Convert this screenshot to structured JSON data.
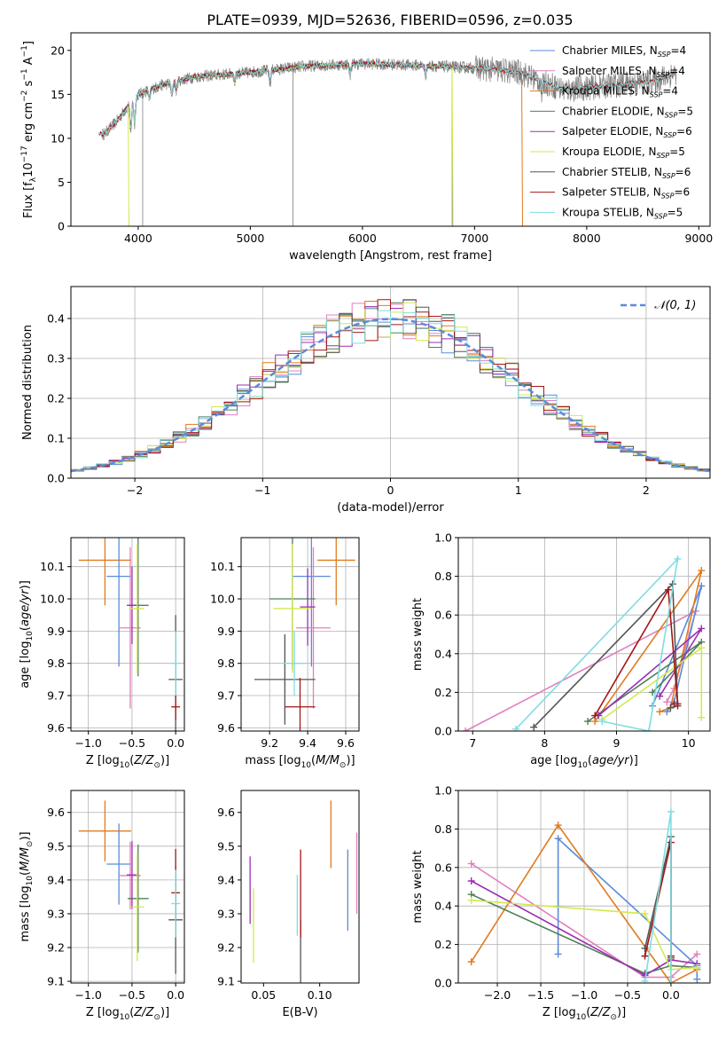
{
  "figure_title": "PLATE=0939, MJD=52636, FIBERID=0596, z=0.035",
  "colors": {
    "Chabrier MILES": "#5b8bd9",
    "Salpeter MILES": "#e07fc0",
    "Kroupa MILES": "#e07b1f",
    "Chabrier ELODIE": "#4f7f5a",
    "Salpeter ELODIE": "#9a2fb3",
    "Kroupa ELODIE": "#d4e84f",
    "Chabrier STELIB": "#555555",
    "Salpeter STELIB": "#a31515",
    "Kroupa STELIB": "#7fdde0"
  },
  "chart_data": [
    {
      "id": "spectrum",
      "type": "line",
      "title": "PLATE=0939, MJD=52636, FIBERID=0596, z=0.035",
      "xlabel": "wavelength [Angstrom, rest frame]",
      "ylabel": "Flux [f_λ 10^-17 erg cm^-2 s^-1 A^-1]",
      "xlim": [
        3400,
        9100
      ],
      "ylim": [
        0,
        22
      ],
      "xticks": [
        4000,
        5000,
        6000,
        7000,
        8000,
        9000
      ],
      "yticks": [
        0,
        5,
        10,
        15,
        20
      ],
      "grid": false,
      "legend_position": "top-right",
      "legend": [
        "Chabrier MILES, N_SSP=4",
        "Salpeter MILES, N_SSP=4",
        "Kroupa MILES, N_SSP=4",
        "Chabrier ELODIE, N_SSP=5",
        "Salpeter ELODIE, N_SSP=6",
        "Kroupa ELODIE, N_SSP=5",
        "Chabrier STELIB, N_SSP=6",
        "Salpeter STELIB, N_SSP=6",
        "Kroupa STELIB, N_SSP=5"
      ],
      "continuum": [
        [
          3700,
          10.5
        ],
        [
          3800,
          11.8
        ],
        [
          3900,
          13.5
        ],
        [
          4000,
          15.0
        ],
        [
          4200,
          16.0
        ],
        [
          4500,
          17.0
        ],
        [
          5000,
          17.5
        ],
        [
          5500,
          18.2
        ],
        [
          6000,
          18.5
        ],
        [
          6500,
          18.3
        ],
        [
          7000,
          18.0
        ],
        [
          7400,
          17.5
        ],
        [
          7800,
          15.5
        ],
        [
          8200,
          16.0
        ],
        [
          8600,
          16.5
        ],
        [
          8800,
          17.5
        ]
      ],
      "model_range": {
        "MILES": [
          3650,
          7400
        ],
        "ELODIE": [
          3900,
          6800
        ],
        "STELIB": [
          3650,
          8800
        ]
      }
    },
    {
      "id": "residuals",
      "type": "bar",
      "xlabel": "(data-model)/error",
      "ylabel": "Normed distribution",
      "xlim": [
        -2.5,
        2.5
      ],
      "ylim": [
        0,
        0.48
      ],
      "xticks": [
        -2,
        -1,
        0,
        1,
        2
      ],
      "xticklabels": [
        "−2",
        "−1",
        "0",
        "1",
        "2"
      ],
      "yticks": [
        0.0,
        0.1,
        0.2,
        0.3,
        0.4
      ],
      "yticklabels": [
        "0.0",
        "0.1",
        "0.2",
        "0.3",
        "0.4"
      ],
      "grid": true,
      "legend_position": "top-right",
      "legend": "𝒩(0, 1)",
      "bin_width": 0.1
    },
    {
      "id": "age-vs-Z",
      "type": "scatter",
      "xlabel": "Z [log10(Z/Z_sun)]",
      "ylabel": "age [log10(age/yr)]",
      "xlim": [
        -1.2,
        0.1
      ],
      "ylim": [
        9.59,
        10.19
      ],
      "xticks": [
        -1.0,
        -0.5,
        0.0
      ],
      "xticklabels": [
        "−1.0",
        "−0.5",
        "0.0"
      ],
      "yticks": [
        9.6,
        9.7,
        9.8,
        9.9,
        10.0,
        10.1
      ],
      "yticklabels": [
        "9.6",
        "9.7",
        "9.8",
        "9.9",
        "10.0",
        "10.1"
      ],
      "grid": true,
      "points": [
        {
          "model": "Kroupa MILES",
          "x": -0.81,
          "xerr": 0.3,
          "y": 10.12,
          "yerr": 0.14
        },
        {
          "model": "Chabrier MILES",
          "x": -0.65,
          "xerr": 0.14,
          "y": 10.07,
          "yerr": 0.28
        },
        {
          "model": "Salpeter MILES",
          "x": -0.52,
          "xerr": 0.12,
          "y": 9.91,
          "yerr": 0.25
        },
        {
          "model": "Chabrier ELODIE",
          "x": -0.43,
          "xerr": 0.12,
          "y": 9.98,
          "yerr": 0.22
        },
        {
          "model": "Salpeter ELODIE",
          "x": -0.5,
          "xerr": 0.06,
          "y": 9.98,
          "yerr": 0.12
        },
        {
          "model": "Kroupa ELODIE",
          "x": -0.44,
          "xerr": 0.08,
          "y": 9.97,
          "yerr": 0.2
        },
        {
          "model": "Chabrier STELIB",
          "x": 0.0,
          "xerr": 0.08,
          "y": 9.75,
          "yerr": 0.2
        },
        {
          "model": "Salpeter STELIB",
          "x": 0.0,
          "xerr": 0.05,
          "y": 9.665,
          "yerr": 0.04
        },
        {
          "model": "Kroupa STELIB",
          "x": 0.0,
          "xerr": 0.05,
          "y": 9.8,
          "yerr": 0.1
        }
      ]
    },
    {
      "id": "age-vs-mass",
      "type": "scatter",
      "xlabel": "mass [log10(M/M_sun)]",
      "ylabel": "",
      "xlim": [
        9.05,
        9.67
      ],
      "ylim": [
        9.59,
        10.19
      ],
      "xticks": [
        9.2,
        9.4,
        9.6
      ],
      "xticklabels": [
        "9.2",
        "9.4",
        "9.6"
      ],
      "yticks": [
        9.6,
        9.7,
        9.8,
        9.9,
        10.0,
        10.1
      ],
      "yticklabels": [
        "9.6",
        "9.7",
        "9.8",
        "9.9",
        "10.0",
        "10.1"
      ],
      "grid": true,
      "points": [
        {
          "model": "Kroupa MILES",
          "x": 9.55,
          "xerr": 0.1,
          "y": 10.12,
          "yerr": 0.14
        },
        {
          "model": "Chabrier MILES",
          "x": 9.42,
          "xerr": 0.1,
          "y": 10.07,
          "yerr": 0.28
        },
        {
          "model": "Salpeter MILES",
          "x": 9.43,
          "xerr": 0.09,
          "y": 9.91,
          "yerr": 0.25
        },
        {
          "model": "Chabrier ELODIE",
          "x": 9.32,
          "xerr": 0.12,
          "y": 10.0,
          "yerr": 0.22
        },
        {
          "model": "Salpeter ELODIE",
          "x": 9.4,
          "xerr": 0.04,
          "y": 9.975,
          "yerr": 0.12
        },
        {
          "model": "Kroupa ELODIE",
          "x": 9.32,
          "xerr": 0.1,
          "y": 9.97,
          "yerr": 0.2
        },
        {
          "model": "Chabrier STELIB",
          "x": 9.28,
          "xerr": 0.16,
          "y": 9.75,
          "yerr": 0.14
        },
        {
          "model": "Salpeter STELIB",
          "x": 9.36,
          "xerr": 0.08,
          "y": 9.665,
          "yerr": 0.09
        },
        {
          "model": "Kroupa STELIB",
          "x": 9.33,
          "xerr": 0.06,
          "y": 9.8,
          "yerr": 0.1
        }
      ]
    },
    {
      "id": "massweight-vs-age",
      "type": "line",
      "xlabel": "age [log10(age/yr)]",
      "ylabel": "mass weight",
      "xlim": [
        6.8,
        10.3
      ],
      "ylim": [
        0,
        1.0
      ],
      "xticks": [
        7,
        8,
        9,
        10
      ],
      "xticklabels": [
        "7",
        "8",
        "9",
        "10"
      ],
      "yticks": [
        0.0,
        0.2,
        0.4,
        0.6,
        0.8,
        1.0
      ],
      "yticklabels": [
        "0.0",
        "0.2",
        "0.4",
        "0.6",
        "0.8",
        "1.0"
      ],
      "grid": true,
      "series": [
        {
          "model": "Salpeter MILES",
          "x": [
            6.9,
            10.1,
            9.8,
            9.7
          ],
          "y": [
            0.0,
            0.62,
            0.22,
            0.15
          ]
        },
        {
          "model": "Chabrier MILES",
          "x": [
            9.5,
            10.18,
            9.8,
            9.7
          ],
          "y": [
            0.13,
            0.75,
            0.15,
            0.1
          ]
        },
        {
          "model": "Kroupa MILES",
          "x": [
            8.7,
            10.18,
            9.75,
            9.6
          ],
          "y": [
            0.05,
            0.83,
            0.12,
            0.1
          ]
        },
        {
          "model": "Chabrier ELODIE",
          "x": [
            8.6,
            10.18,
            9.5
          ],
          "y": [
            0.05,
            0.46,
            0.2
          ]
        },
        {
          "model": "Salpeter ELODIE",
          "x": [
            8.75,
            10.18,
            9.6
          ],
          "y": [
            0.08,
            0.53,
            0.18
          ]
        },
        {
          "model": "Kroupa ELODIE",
          "x": [
            8.8,
            10.18,
            10.18
          ],
          "y": [
            0.06,
            0.43,
            0.07
          ]
        },
        {
          "model": "Chabrier STELIB",
          "x": [
            7.85,
            9.78,
            9.85,
            9.75
          ],
          "y": [
            0.02,
            0.76,
            0.13,
            0.12
          ]
        },
        {
          "model": "Salpeter STELIB",
          "x": [
            8.7,
            9.72,
            9.85,
            9.8
          ],
          "y": [
            0.08,
            0.73,
            0.14,
            0.14
          ]
        },
        {
          "model": "Kroupa STELIB",
          "x": [
            7.6,
            9.85,
            9.45,
            8.8
          ],
          "y": [
            0.01,
            0.89,
            0.0,
            0.05
          ]
        }
      ]
    },
    {
      "id": "mass-vs-Z",
      "type": "scatter",
      "xlabel": "Z [log10(Z/Z_sun)]",
      "ylabel": "mass [log10(M/M_sun)]",
      "xlim": [
        -1.2,
        0.1
      ],
      "ylim": [
        9.095,
        9.665
      ],
      "xticks": [
        -1.0,
        -0.5,
        0.0
      ],
      "xticklabels": [
        "−1.0",
        "−0.5",
        "0.0"
      ],
      "yticks": [
        9.1,
        9.2,
        9.3,
        9.4,
        9.5,
        9.6
      ],
      "yticklabels": [
        "9.1",
        "9.2",
        "9.3",
        "9.4",
        "9.5",
        "9.6"
      ],
      "grid": true,
      "points": [
        {
          "model": "Kroupa MILES",
          "x": -0.81,
          "xerr": 0.3,
          "y": 9.545,
          "yerr": 0.09
        },
        {
          "model": "Chabrier MILES",
          "x": -0.65,
          "xerr": 0.14,
          "y": 9.447,
          "yerr": 0.12
        },
        {
          "model": "Salpeter MILES",
          "x": -0.52,
          "xerr": 0.12,
          "y": 9.413,
          "yerr": 0.1
        },
        {
          "model": "Chabrier ELODIE",
          "x": -0.43,
          "xerr": 0.12,
          "y": 9.345,
          "yerr": 0.16
        },
        {
          "model": "Salpeter ELODIE",
          "x": -0.5,
          "xerr": 0.06,
          "y": 9.415,
          "yerr": 0.1
        },
        {
          "model": "Kroupa ELODIE",
          "x": -0.44,
          "xerr": 0.08,
          "y": 9.32,
          "yerr": 0.16
        },
        {
          "model": "Chabrier STELIB",
          "x": 0.0,
          "xerr": 0.08,
          "y": 9.282,
          "yerr": 0.16
        },
        {
          "model": "Salpeter STELIB",
          "x": 0.0,
          "xerr": 0.05,
          "y": 9.362,
          "yerr": 0.13
        },
        {
          "model": "Kroupa STELIB",
          "x": 0.0,
          "xerr": 0.05,
          "y": 9.33,
          "yerr": 0.1
        }
      ]
    },
    {
      "id": "mass-vs-ebv",
      "type": "scatter",
      "xlabel": "E(B-V)",
      "ylabel": "",
      "xlim": [
        0.03,
        0.135
      ],
      "ylim": [
        9.095,
        9.665
      ],
      "xticks": [
        0.05,
        0.1
      ],
      "xticklabels": [
        "0.05",
        "0.10"
      ],
      "yticks": [
        9.1,
        9.2,
        9.3,
        9.4,
        9.5,
        9.6
      ],
      "yticklabels": [
        "9.1",
        "9.2",
        "9.3",
        "9.4",
        "9.5",
        "9.6"
      ],
      "grid": false,
      "points": [
        {
          "model": "Salpeter ELODIE",
          "x": 0.038,
          "y": 9.37,
          "yerr": 0.1
        },
        {
          "model": "Kroupa ELODIE",
          "x": 0.041,
          "y": 9.265,
          "yerr": 0.11
        },
        {
          "model": "Kroupa STELIB",
          "x": 0.08,
          "y": 9.325,
          "yerr": 0.09
        },
        {
          "model": "Chabrier STELIB",
          "x": 0.083,
          "y": 9.182,
          "yerr": 0.1
        },
        {
          "model": "Salpeter STELIB",
          "x": 0.083,
          "y": 9.36,
          "yerr": 0.13
        },
        {
          "model": "Kroupa MILES",
          "x": 0.11,
          "y": 9.535,
          "yerr": 0.1
        },
        {
          "model": "Chabrier MILES",
          "x": 0.125,
          "y": 9.37,
          "yerr": 0.12
        },
        {
          "model": "Salpeter MILES",
          "x": 0.133,
          "y": 9.42,
          "yerr": 0.12
        }
      ]
    },
    {
      "id": "massweight-vs-Z",
      "type": "line",
      "xlabel": "Z [log10(Z/Z_sun)]",
      "ylabel": "mass weight",
      "xlim": [
        -2.45,
        0.45
      ],
      "ylim": [
        0,
        1.0
      ],
      "xticks": [
        -2.0,
        -1.5,
        -1.0,
        -0.5,
        0.0
      ],
      "xticklabels": [
        "−2.0",
        "−1.5",
        "−1.0",
        "−0.5",
        "0.0"
      ],
      "yticks": [
        0.0,
        0.2,
        0.4,
        0.6,
        0.8,
        1.0
      ],
      "yticklabels": [
        "0.0",
        "0.2",
        "0.4",
        "0.6",
        "0.8",
        "1.0"
      ],
      "grid": true,
      "series": [
        {
          "model": "Salpeter MILES",
          "x": [
            -2.3,
            -0.3,
            0.0,
            0.3
          ],
          "y": [
            0.62,
            0.03,
            0.03,
            0.15
          ]
        },
        {
          "model": "Chabrier MILES",
          "x": [
            -1.3,
            -1.3,
            0.3,
            0.3
          ],
          "y": [
            0.15,
            0.75,
            0.09,
            0.02
          ]
        },
        {
          "model": "Kroupa MILES",
          "x": [
            -2.3,
            -1.3,
            0.0,
            0.3
          ],
          "y": [
            0.11,
            0.82,
            0.0,
            0.07
          ]
        },
        {
          "model": "Chabrier ELODIE",
          "x": [
            -2.3,
            -0.3,
            0.0,
            0.3
          ],
          "y": [
            0.46,
            0.05,
            0.09,
            0.08
          ]
        },
        {
          "model": "Salpeter ELODIE",
          "x": [
            -2.3,
            -0.3,
            0.0,
            0.3
          ],
          "y": [
            0.53,
            0.04,
            0.12,
            0.1
          ]
        },
        {
          "model": "Kroupa ELODIE",
          "x": [
            -2.3,
            -0.3,
            0.0,
            0.3
          ],
          "y": [
            0.43,
            0.36,
            0.07,
            0.08
          ]
        },
        {
          "model": "Chabrier STELIB",
          "x": [
            -0.3,
            0.0,
            0.0
          ],
          "y": [
            0.18,
            0.76,
            0.13
          ]
        },
        {
          "model": "Salpeter STELIB",
          "x": [
            -0.3,
            0.0,
            0.0
          ],
          "y": [
            0.14,
            0.73,
            0.14
          ]
        },
        {
          "model": "Kroupa STELIB",
          "x": [
            -0.3,
            0.0,
            0.0
          ],
          "y": [
            0.01,
            0.89,
            0.0
          ]
        }
      ]
    }
  ]
}
